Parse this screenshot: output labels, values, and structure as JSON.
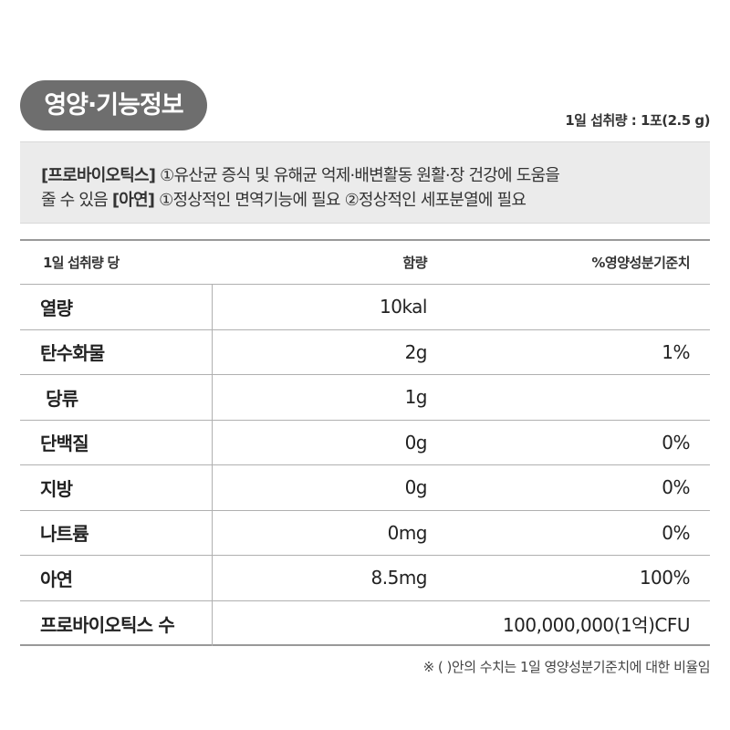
{
  "title": "영양·기능정보",
  "serving_size": "1일 섭취량 : 1포(2.5 g)",
  "functions": {
    "line1_tag": "[프로바이오틱스]",
    "line1_text": " ①유산균 증식 및 유해균 억제·배변활동 원활·장 건강에 도움을",
    "line2_text": "줄 수 있음 ",
    "line2_tag": "[아연]",
    "line2_rest": " ①정상적인 면역기능에 필요 ②정상적인 세포분열에 필요"
  },
  "table": {
    "headers": {
      "name": "1일 섭취량 당",
      "amount": "함량",
      "dv": "%영양성분기준치"
    },
    "rows": [
      {
        "name": "열량",
        "amount": "10kal",
        "dv": ""
      },
      {
        "name": "탄수화물",
        "amount": "2g",
        "dv": "1%"
      },
      {
        "name": " 당류",
        "amount": "1g",
        "dv": ""
      },
      {
        "name": "단백질",
        "amount": "0g",
        "dv": "0%"
      },
      {
        "name": "지방",
        "amount": "0g",
        "dv": "0%"
      },
      {
        "name": "나트륨",
        "amount": "0mg",
        "dv": "0%"
      },
      {
        "name": "아연",
        "amount": "8.5mg",
        "dv": "100%"
      }
    ],
    "probiotics": {
      "name": "프로바이오틱스 수",
      "amount": "100,000,000(1억)CFU"
    }
  },
  "footnote": "※ ( )안의 수치는 1일 영양성분기준치에 대한 비율임"
}
